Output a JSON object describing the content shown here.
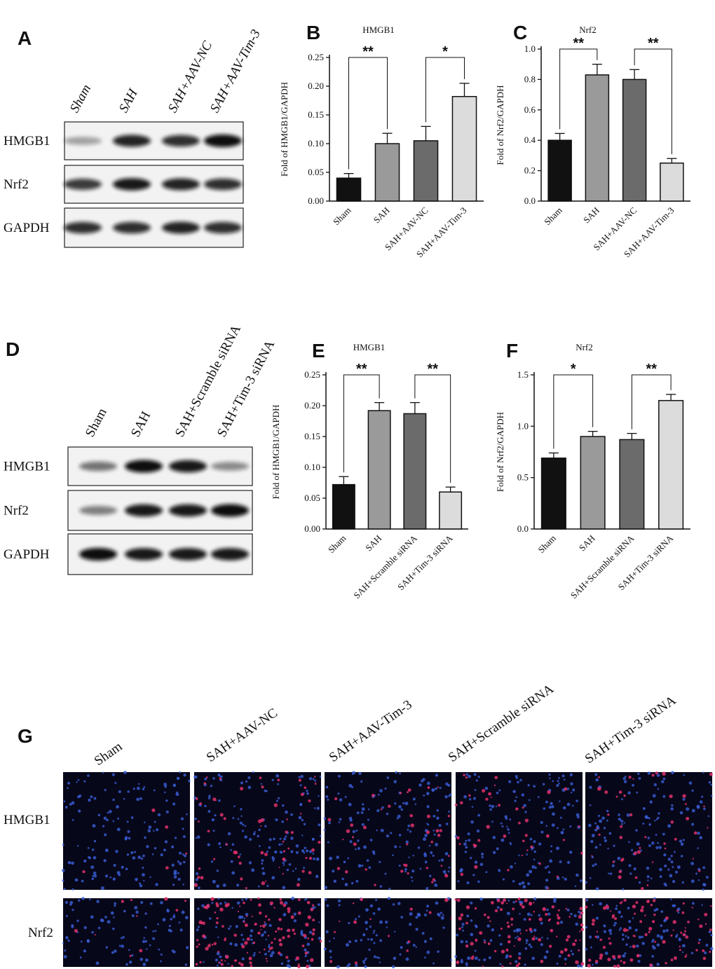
{
  "chart_data": [
    {
      "type": "bar",
      "panel": "B",
      "title": "HMGB1",
      "y_label": "Fold of HMGB1/GAPDH",
      "categories": [
        "Sham",
        "SAH",
        "SAH+AAV-NC",
        "SAH+AAV-Tim-3"
      ],
      "values": [
        0.04,
        0.1,
        0.105,
        0.182
      ],
      "errors": [
        0.008,
        0.018,
        0.025,
        0.023
      ],
      "colors": [
        "#111111",
        "#9a9a9a",
        "#6b6b6b",
        "#dcdcdc"
      ],
      "ylim": [
        0,
        0.25
      ],
      "yticks": [
        {
          "value": 0,
          "label": "0.00"
        },
        {
          "value": 0.05,
          "label": "0.05"
        },
        {
          "value": 0.1,
          "label": "0.10"
        },
        {
          "value": 0.15,
          "label": "0.15"
        },
        {
          "value": 0.2,
          "label": "0.20"
        },
        {
          "value": 0.25,
          "label": "0.25"
        }
      ],
      "annotations": [
        {
          "text": "**",
          "between": [
            "Sham",
            "SAH"
          ]
        },
        {
          "text": "*",
          "between": [
            "SAH+AAV-NC",
            "SAH+AAV-Tim-3"
          ]
        }
      ]
    },
    {
      "type": "bar",
      "panel": "C",
      "title": "Nrf2",
      "y_label": "Fold of Nrf2/GAPDH",
      "categories": [
        "Sham",
        "SAH",
        "SAH+AAV-NC",
        "SAH+AAV-Tim-3"
      ],
      "values": [
        0.4,
        0.83,
        0.8,
        0.25
      ],
      "errors": [
        0.045,
        0.07,
        0.065,
        0.03
      ],
      "colors": [
        "#111111",
        "#9a9a9a",
        "#6b6b6b",
        "#dcdcdc"
      ],
      "ylim": [
        0,
        1
      ],
      "yticks": [
        {
          "value": 0,
          "label": "0.0"
        },
        0.2,
        0.4,
        0.6,
        0.8,
        {
          "value": 1,
          "label": "1.0"
        }
      ],
      "annotations": [
        {
          "text": "**",
          "between": [
            "Sham",
            "SAH"
          ]
        },
        {
          "text": "**",
          "between": [
            "SAH+AAV-NC",
            "SAH+AAV-Tim-3"
          ]
        }
      ]
    },
    {
      "type": "bar",
      "panel": "E",
      "title": "HMGB1",
      "y_label": "Fold of HMGB1/GAPDH",
      "categories": [
        "Sham",
        "SAH",
        "SAH+Scramble siRNA",
        "SAH+Tim-3 siRNA"
      ],
      "values": [
        0.072,
        0.192,
        0.187,
        0.06
      ],
      "errors": [
        0.013,
        0.013,
        0.018,
        0.008
      ],
      "colors": [
        "#111111",
        "#9a9a9a",
        "#6b6b6b",
        "#dcdcdc"
      ],
      "ylim": [
        0,
        0.25
      ],
      "yticks": [
        {
          "value": 0,
          "label": "0.00"
        },
        {
          "value": 0.05,
          "label": "0.05"
        },
        {
          "value": 0.1,
          "label": "0.10"
        },
        {
          "value": 0.15,
          "label": "0.15"
        },
        {
          "value": 0.2,
          "label": "0.20"
        },
        {
          "value": 0.25,
          "label": "0.25"
        }
      ],
      "annotations": [
        {
          "text": "**",
          "between": [
            "Sham",
            "SAH"
          ]
        },
        {
          "text": "**",
          "between": [
            "SAH+Scramble siRNA",
            "SAH+Tim-3 siRNA"
          ]
        }
      ]
    },
    {
      "type": "bar",
      "panel": "F",
      "title": "Nrf2",
      "y_label": "Fold of Nrf2/GAPDH",
      "categories": [
        "Sham",
        "SAH",
        "SAH+Scramble siRNA",
        "SAH+Tim-3 siRNA"
      ],
      "values": [
        0.69,
        0.9,
        0.87,
        1.25
      ],
      "errors": [
        0.05,
        0.05,
        0.06,
        0.06
      ],
      "colors": [
        "#111111",
        "#9a9a9a",
        "#6b6b6b",
        "#dcdcdc"
      ],
      "ylim": [
        0,
        1.5
      ],
      "yticks": [
        {
          "value": 0,
          "label": "0.0"
        },
        0.5,
        {
          "value": 1,
          "label": "1.0"
        },
        1.5
      ],
      "annotations": [
        {
          "text": "*",
          "between": [
            "Sham",
            "SAH"
          ]
        },
        {
          "text": "**",
          "between": [
            "SAH+Scramble siRNA",
            "SAH+Tim-3 siRNA"
          ]
        }
      ]
    }
  ],
  "blots": [
    {
      "panel": "A",
      "lanes": [
        "Sham",
        "SAH",
        "SAH+AAV-NC",
        "SAH+AAV-Tim-3"
      ],
      "rows": [
        "HMGB1",
        "Nrf2",
        "GAPDH"
      ]
    },
    {
      "panel": "D",
      "lanes": [
        "Sham",
        "SAH",
        "SAH+Scramble siRNA",
        "SAH+Tim-3 siRNA"
      ],
      "rows": [
        "HMGB1",
        "Nrf2",
        "GAPDH"
      ]
    }
  ],
  "microscopy": {
    "panel": "G",
    "columns": [
      "Sham",
      "SAH+AAV-NC",
      "SAH+AAV-Tim-3",
      "SAH+Scramble siRNA",
      "SAH+Tim-3 siRNA"
    ],
    "rows": [
      "HMGB1",
      "Nrf2"
    ]
  }
}
